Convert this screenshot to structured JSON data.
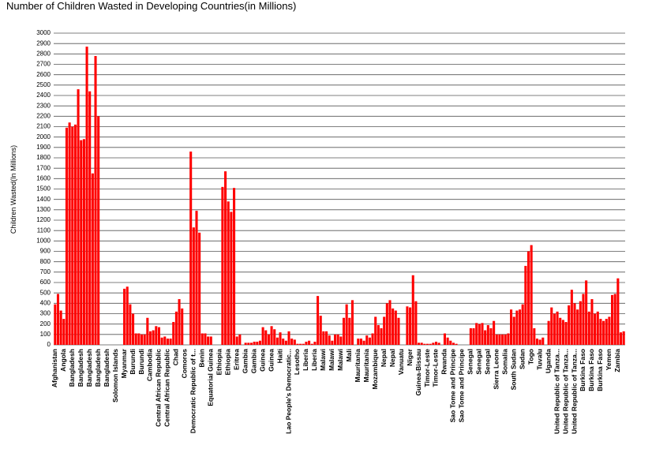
{
  "chart_data": {
    "type": "bar",
    "title": "Number of Children Wasted in Developing Countries(in Millions)",
    "y_label": "Children Wasted(In Millions)",
    "color": "#ff0000",
    "grid": true,
    "ylim": [
      0,
      3000
    ],
    "yticks": [
      0,
      100,
      200,
      300,
      400,
      500,
      600,
      700,
      800,
      900,
      1000,
      1100,
      1200,
      1300,
      1400,
      1500,
      1600,
      1700,
      1800,
      1900,
      2000,
      2100,
      2200,
      2300,
      2400,
      2500,
      2600,
      2700,
      2800,
      2900,
      3000
    ],
    "categories": [
      "Afghanistan",
      null,
      null,
      "Angola",
      null,
      null,
      "Bangladesh",
      null,
      null,
      "Bangladesh",
      null,
      null,
      "Bangladesh",
      null,
      null,
      "Bangladesh",
      null,
      null,
      "Bangladesh",
      null,
      null,
      "Solomon Islands",
      null,
      null,
      "Myanmar",
      null,
      null,
      "Burundi",
      null,
      null,
      "Burundi",
      null,
      null,
      "Cambodia",
      null,
      null,
      "Central African Republic",
      null,
      null,
      "Central African Republic",
      null,
      null,
      "Chad",
      null,
      null,
      "Comoros",
      null,
      null,
      "Democratic Republic of t...",
      null,
      null,
      "Benin",
      null,
      null,
      "Equatorial Guinea",
      null,
      null,
      "Ethiopia",
      null,
      null,
      "Ethiopia",
      null,
      null,
      "Eritrea",
      null,
      null,
      "Gambia",
      null,
      null,
      "Gambia",
      null,
      null,
      "Guinea",
      null,
      null,
      "Guinea",
      null,
      null,
      "Haiti",
      null,
      null,
      "Lao People's Democratic...",
      null,
      null,
      "Lesotho",
      null,
      null,
      "Liberia",
      null,
      null,
      "Liberia",
      null,
      null,
      "Malawi",
      null,
      null,
      "Malawi",
      null,
      null,
      "Malawi",
      null,
      null,
      "Mali",
      null,
      null,
      "Mauritania",
      null,
      null,
      "Mauritania",
      null,
      null,
      "Mozambique",
      null,
      null,
      "Nepal",
      null,
      null,
      "Nepal",
      null,
      null,
      "Vanuatu",
      null,
      null,
      "Niger",
      null,
      null,
      "Guinea-Bissau",
      null,
      null,
      "Timor-Leste",
      null,
      null,
      "Timor-Leste",
      null,
      null,
      "Rwanda",
      null,
      null,
      "Sao Tome and Principe",
      null,
      null,
      "Sao Tome and Principe",
      null,
      null,
      "Senegal",
      null,
      null,
      "Senegal",
      null,
      null,
      "Senegal",
      null,
      null,
      "Sierra Leone",
      null,
      null,
      "Somalia",
      null,
      null,
      "South Sudan",
      null,
      null,
      "Sudan",
      null,
      null,
      "Togo",
      null,
      null,
      "Tuvalu",
      null,
      null,
      "Uganda",
      null,
      null,
      "United Republic of Tanza...",
      null,
      null,
      "United Republic of Tanza...",
      null,
      null,
      "United Republic of Tanza...",
      null,
      null,
      "Burkina Faso",
      null,
      null,
      "Burkina Faso",
      null,
      null,
      "Burkina Faso",
      null,
      null,
      "Yemen",
      null,
      null,
      "Zambia",
      null,
      null
    ],
    "values": [
      390,
      490,
      330,
      250,
      2090,
      2140,
      2100,
      2120,
      2460,
      1970,
      1980,
      2870,
      2440,
      1650,
      2780,
      2200,
      0,
      0,
      0,
      0,
      0,
      0,
      0,
      0,
      540,
      560,
      390,
      300,
      110,
      110,
      100,
      100,
      260,
      130,
      140,
      180,
      170,
      70,
      80,
      60,
      60,
      220,
      320,
      440,
      350,
      0,
      0,
      1860,
      1130,
      1290,
      1080,
      110,
      110,
      80,
      80,
      0,
      0,
      0,
      1520,
      1670,
      1380,
      1280,
      1510,
      80,
      100,
      0,
      20,
      20,
      20,
      30,
      30,
      40,
      170,
      140,
      100,
      180,
      150,
      70,
      120,
      60,
      40,
      130,
      60,
      50,
      10,
      10,
      10,
      30,
      40,
      10,
      30,
      470,
      280,
      130,
      130,
      90,
      40,
      100,
      100,
      80,
      260,
      390,
      260,
      430,
      0,
      60,
      60,
      40,
      90,
      70,
      110,
      270,
      190,
      160,
      270,
      400,
      430,
      350,
      330,
      260,
      0,
      0,
      370,
      360,
      670,
      420,
      20,
      20,
      10,
      10,
      10,
      20,
      30,
      20,
      0,
      110,
      70,
      40,
      20,
      10,
      0,
      0,
      0,
      0,
      160,
      160,
      210,
      200,
      210,
      140,
      190,
      160,
      230,
      100,
      100,
      100,
      100,
      110,
      340,
      270,
      330,
      340,
      390,
      760,
      900,
      960,
      160,
      60,
      50,
      70,
      0,
      230,
      360,
      300,
      320,
      260,
      240,
      220,
      380,
      530,
      400,
      340,
      420,
      490,
      620,
      320,
      440,
      300,
      320,
      250,
      230,
      250,
      270,
      480,
      490,
      640,
      120,
      130
    ]
  }
}
